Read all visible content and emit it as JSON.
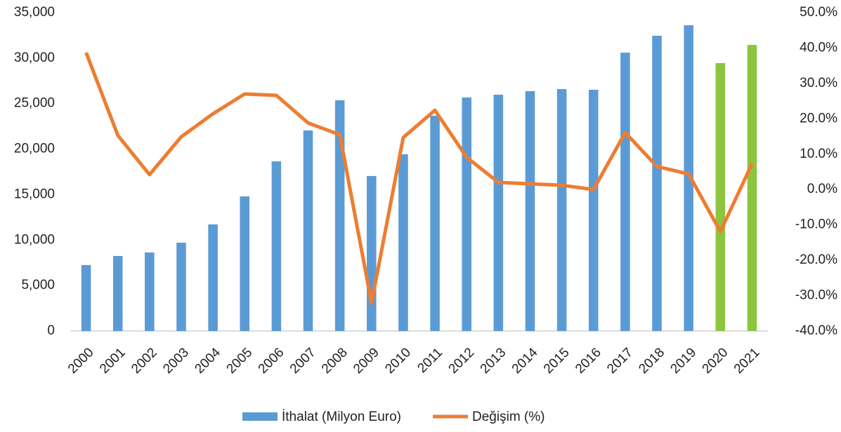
{
  "chart_data": {
    "type": "bar-line",
    "categories": [
      "2000",
      "2001",
      "2002",
      "2003",
      "2004",
      "2005",
      "2006",
      "2007",
      "2008",
      "2009",
      "2010",
      "2011",
      "2012",
      "2013",
      "2014",
      "2015",
      "2016",
      "2017",
      "2018",
      "2019",
      "2020",
      "2021"
    ],
    "series": [
      {
        "name": "İthalat (Milyon Euro)",
        "type": "bar",
        "color": "#5b9bd5",
        "colors": [
          "#5b9bd5",
          "#5b9bd5",
          "#5b9bd5",
          "#5b9bd5",
          "#5b9bd5",
          "#5b9bd5",
          "#5b9bd5",
          "#5b9bd5",
          "#5b9bd5",
          "#5b9bd5",
          "#5b9bd5",
          "#5b9bd5",
          "#5b9bd5",
          "#5b9bd5",
          "#5b9bd5",
          "#5b9bd5",
          "#5b9bd5",
          "#5b9bd5",
          "#5b9bd5",
          "#5b9bd5",
          "#8cc63f",
          "#8cc63f"
        ],
        "values": [
          7250,
          8250,
          8630,
          9710,
          11720,
          14800,
          18650,
          22050,
          25360,
          17040,
          19430,
          23670,
          25670,
          25980,
          26370,
          26600,
          26520,
          30600,
          32460,
          33610,
          29450,
          31450
        ]
      },
      {
        "name": "Değişim (%)",
        "type": "line",
        "axis": "y2",
        "color": "#ed7d31",
        "values": [
          38.7,
          15.3,
          4.2,
          14.9,
          21.4,
          27.0,
          26.6,
          18.8,
          15.5,
          -32.1,
          14.7,
          22.4,
          9.1,
          2.0,
          1.6,
          1.2,
          0.0,
          16.1,
          6.5,
          4.4,
          -11.9,
          7.3
        ]
      }
    ],
    "ylim": [
      0,
      35000
    ],
    "yticks": [
      0,
      {
        "value": 5000,
        "label": "5,000"
      },
      {
        "value": 10000,
        "label": "10,000"
      },
      {
        "value": 15000,
        "label": "15,000"
      },
      {
        "value": 20000,
        "label": "20,000"
      },
      {
        "value": 25000,
        "label": "25,000"
      },
      {
        "value": 30000,
        "label": "30,000"
      },
      {
        "value": 35000,
        "label": "35,000"
      }
    ],
    "y2lim": [
      -40,
      50
    ],
    "y2ticks": [
      {
        "value": -40,
        "label": "-40.0%"
      },
      {
        "value": -30,
        "label": "-30.0%"
      },
      {
        "value": -20,
        "label": "-20.0%"
      },
      {
        "value": -10,
        "label": "-10.0%"
      },
      {
        "value": 0,
        "label": "0.0%"
      },
      {
        "value": 10,
        "label": "10.0%"
      },
      {
        "value": 20,
        "label": "20.0%"
      },
      {
        "value": 30,
        "label": "30.0%"
      },
      {
        "value": 40,
        "label": "40.0%"
      },
      {
        "value": 50,
        "label": "50.0%"
      }
    ],
    "legend": "bottom",
    "grid": false
  }
}
